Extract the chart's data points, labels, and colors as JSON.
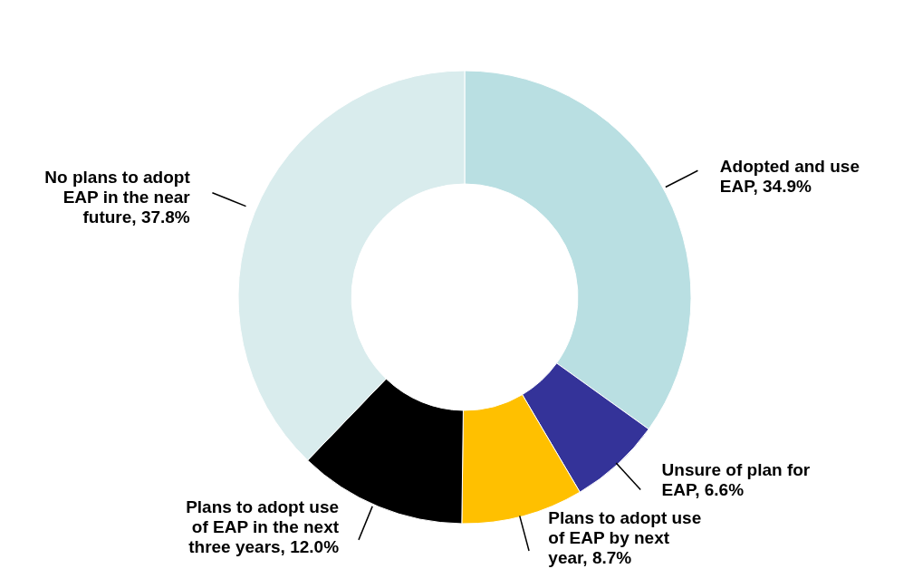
{
  "chart_data": {
    "type": "donut",
    "categories": [
      "Adopted and use EAP",
      "Unsure of plan for EAP",
      "Plans to adopt use of EAP by next year",
      "Plans to adopt use of EAP in the next three years",
      "No plans to adopt EAP in the near future"
    ],
    "values": [
      34.9,
      6.6,
      8.7,
      12.0,
      37.8
    ],
    "value_labels": [
      "34.9%",
      "6.6%",
      "8.7%",
      "12.0%",
      "37.8%"
    ],
    "colors": [
      "#b9dfe2",
      "#343399",
      "#ffc000",
      "#000000",
      "#d9eced"
    ],
    "legend": false
  }
}
